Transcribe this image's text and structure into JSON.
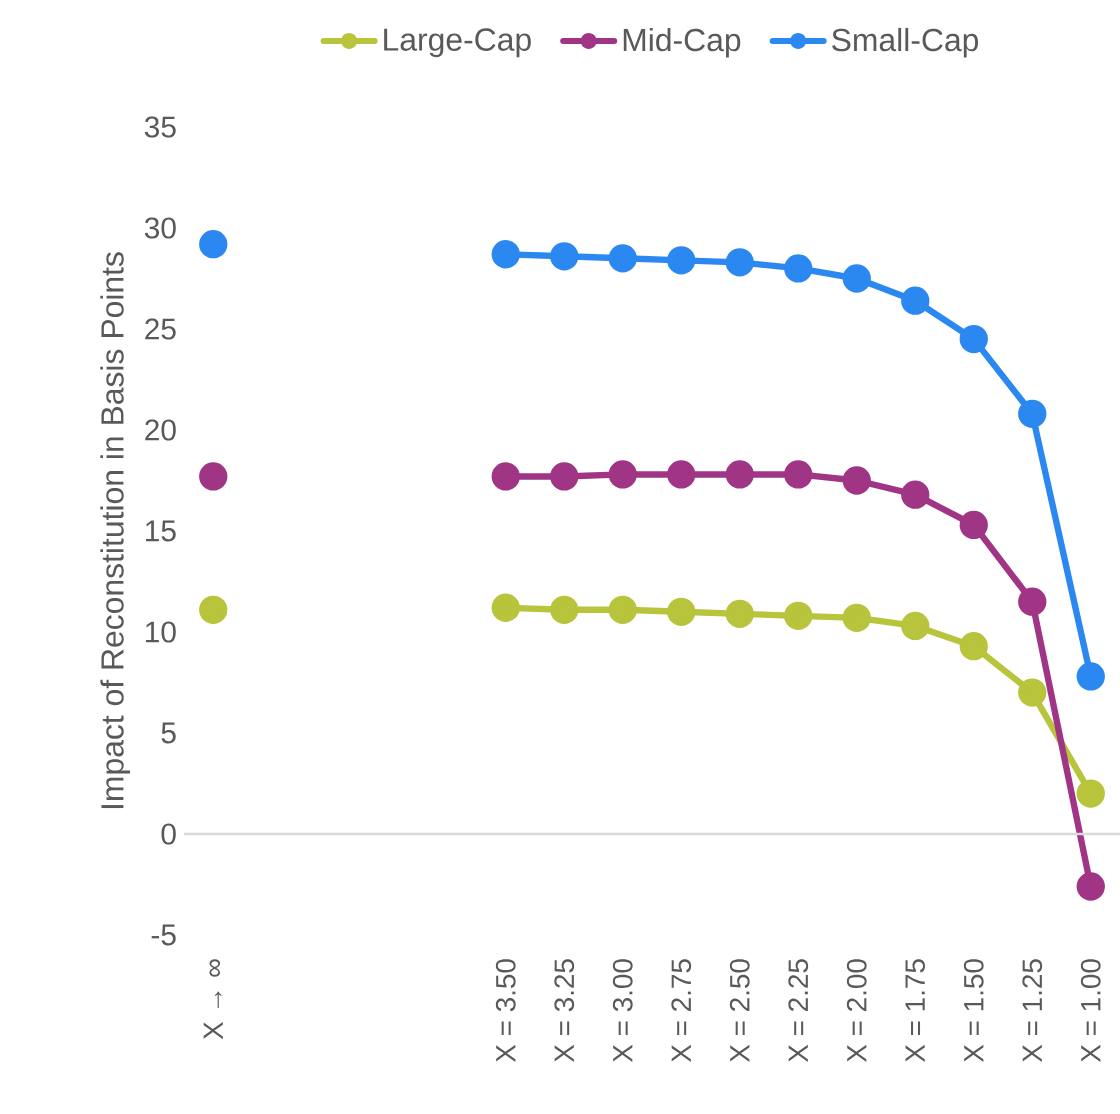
{
  "chart_data": {
    "type": "line",
    "ylabel": "Impact of Reconstitution in Basis Points",
    "categories": [
      "X → ∞",
      null,
      null,
      null,
      null,
      "X = 3.50",
      "X = 3.25",
      "X = 3.00",
      "X = 2.75",
      "X = 2.50",
      "X = 2.25",
      "X = 2.00",
      "X = 1.75",
      "X = 1.50",
      "X = 1.25",
      "X = 1.00"
    ],
    "series": [
      {
        "name": "Large-Cap",
        "color": "#b8c43c",
        "values": [
          11.1,
          null,
          null,
          null,
          null,
          11.2,
          11.1,
          11.1,
          11.0,
          10.9,
          10.8,
          10.7,
          10.3,
          9.3,
          7.0,
          2.0
        ]
      },
      {
        "name": "Mid-Cap",
        "color": "#a03585",
        "values": [
          17.7,
          null,
          null,
          null,
          null,
          17.7,
          17.7,
          17.8,
          17.8,
          17.8,
          17.8,
          17.5,
          16.8,
          15.3,
          11.5,
          -2.6
        ]
      },
      {
        "name": "Small-Cap",
        "color": "#2b88f0",
        "values": [
          29.2,
          null,
          null,
          null,
          null,
          28.7,
          28.6,
          28.5,
          28.4,
          28.3,
          28.0,
          27.5,
          26.4,
          24.5,
          20.8,
          7.8
        ]
      }
    ],
    "ylim": [
      -5,
      35
    ],
    "yticks": [
      -5,
      0,
      5,
      10,
      15,
      20,
      25,
      30,
      35
    ],
    "ref_lines": [
      {
        "axis": "y",
        "value": 0,
        "color": "#d9d9d9"
      }
    ],
    "grid": false,
    "legend": "top",
    "marker": "circle",
    "line_style": "solid"
  }
}
